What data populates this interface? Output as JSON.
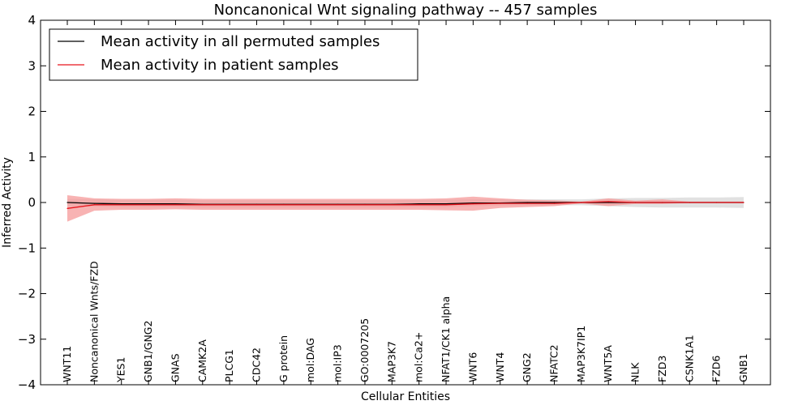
{
  "chart_data": {
    "type": "line",
    "title": "Noncanonical Wnt signaling pathway -- 457 samples",
    "xlabel": "Cellular Entities",
    "ylabel": "Inferred Activity",
    "ylim": [
      -4,
      4
    ],
    "yticks": [
      -4,
      -3,
      -2,
      -1,
      0,
      1,
      2,
      3,
      4
    ],
    "ytick_labels": [
      "−4",
      "−3",
      "−2",
      "−1",
      "0",
      "1",
      "2",
      "3",
      "4"
    ],
    "grid": false,
    "legend_position": "upper-left",
    "categories": [
      "WNT11",
      "Noncanonical Wnts/FZD",
      "YES1",
      "GNB1/GNG2",
      "GNAS",
      "CAMK2A",
      "PLCG1",
      "CDC42",
      "G protein",
      "mol:DAG",
      "mol:IP3",
      "GO:0007205",
      "MAP3K7",
      "mol:Ca2+",
      "NFAT1/CK1 alpha",
      "WNT6",
      "WNT4",
      "GNG2",
      "NFATC2",
      "MAP3K7IP1",
      "WNT5A",
      "NLK",
      "FZD3",
      "CSNK1A1",
      "FZD6",
      "GNB1"
    ],
    "series": [
      {
        "name": "Mean activity in all permuted samples",
        "color": "#000000",
        "band_color": "#c8c8c8",
        "values": [
          0.0,
          -0.02,
          -0.03,
          -0.03,
          -0.03,
          -0.04,
          -0.04,
          -0.04,
          -0.04,
          -0.04,
          -0.04,
          -0.04,
          -0.04,
          -0.03,
          -0.03,
          -0.01,
          -0.01,
          0.0,
          0.0,
          0.0,
          0.0,
          0.0,
          0.0,
          0.0,
          0.0,
          0.0
        ],
        "lower": [
          -0.08,
          -0.09,
          -0.1,
          -0.1,
          -0.1,
          -0.11,
          -0.11,
          -0.11,
          -0.11,
          -0.11,
          -0.11,
          -0.11,
          -0.11,
          -0.1,
          -0.1,
          -0.08,
          -0.07,
          -0.06,
          -0.06,
          -0.06,
          -0.08,
          -0.1,
          -0.11,
          -0.11,
          -0.11,
          -0.12
        ],
        "upper": [
          0.08,
          0.07,
          0.06,
          0.06,
          0.06,
          0.05,
          0.05,
          0.05,
          0.05,
          0.05,
          0.05,
          0.05,
          0.05,
          0.06,
          0.06,
          0.07,
          0.07,
          0.07,
          0.07,
          0.07,
          0.09,
          0.1,
          0.1,
          0.11,
          0.11,
          0.12
        ]
      },
      {
        "name": "Mean activity in patient samples",
        "color": "#e8141c",
        "band_color": "#f59a9a",
        "values": [
          -0.13,
          -0.05,
          -0.05,
          -0.05,
          -0.05,
          -0.05,
          -0.05,
          -0.05,
          -0.05,
          -0.05,
          -0.05,
          -0.05,
          -0.05,
          -0.05,
          -0.05,
          -0.03,
          -0.02,
          -0.02,
          -0.02,
          0.0,
          0.02,
          0.0,
          0.0,
          0.0,
          0.0,
          0.0
        ],
        "lower": [
          -0.42,
          -0.18,
          -0.16,
          -0.16,
          -0.15,
          -0.16,
          -0.16,
          -0.16,
          -0.16,
          -0.16,
          -0.16,
          -0.16,
          -0.16,
          -0.16,
          -0.17,
          -0.18,
          -0.12,
          -0.1,
          -0.08,
          -0.02,
          -0.08,
          -0.03,
          -0.03,
          -0.01,
          -0.01,
          -0.01
        ],
        "upper": [
          0.16,
          0.09,
          0.08,
          0.08,
          0.09,
          0.08,
          0.08,
          0.08,
          0.08,
          0.08,
          0.08,
          0.08,
          0.08,
          0.08,
          0.09,
          0.13,
          0.09,
          0.06,
          0.05,
          0.02,
          0.09,
          0.04,
          0.07,
          0.02,
          0.02,
          0.02
        ]
      }
    ]
  }
}
